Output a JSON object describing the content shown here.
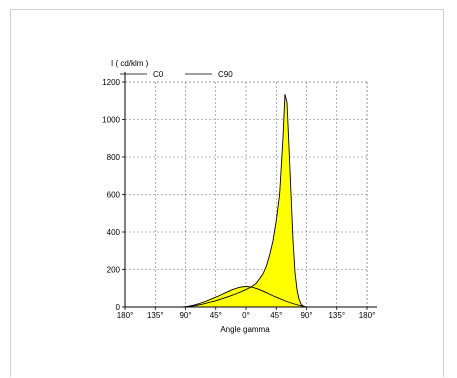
{
  "chart_data": {
    "type": "area",
    "ylabel": "I ( cd/klm )",
    "xlabel": "Angle gamma",
    "x_ticks": [
      "180°",
      "135°",
      "90°",
      "45°",
      "0°",
      "45°",
      "90°",
      "135°",
      "180°"
    ],
    "x_tick_values": [
      -180,
      -135,
      -90,
      -45,
      0,
      45,
      90,
      135,
      180
    ],
    "y_ticks": [
      "0",
      "200",
      "400",
      "600",
      "800",
      "1000",
      "1200"
    ],
    "xlim": [
      -180,
      180
    ],
    "ylim": [
      0,
      1200
    ],
    "grid": true,
    "legend_position": "top-left",
    "fill_color": "#ffff00",
    "line_color": "#000000",
    "series": [
      {
        "name": "C0",
        "x": [
          -95,
          -85,
          -75,
          -65,
          -55,
          -45,
          -35,
          -25,
          -15,
          -5,
          0,
          5,
          15,
          25,
          30,
          35,
          40,
          45,
          50,
          55,
          58,
          61,
          64,
          67,
          70,
          73,
          76,
          79,
          82,
          85,
          88
        ],
        "values": [
          0,
          3,
          8,
          15,
          24,
          33,
          45,
          57,
          70,
          85,
          93,
          102,
          125,
          175,
          215,
          275,
          350,
          460,
          600,
          900,
          1135,
          1090,
          850,
          600,
          350,
          180,
          90,
          40,
          15,
          5,
          0
        ]
      },
      {
        "name": "C90",
        "x": [
          -90,
          -80,
          -70,
          -60,
          -50,
          -40,
          -30,
          -20,
          -10,
          0,
          10,
          20,
          30,
          40,
          50,
          60,
          70,
          80,
          90
        ],
        "values": [
          0,
          8,
          18,
          30,
          45,
          60,
          77,
          93,
          105,
          110,
          105,
          93,
          77,
          60,
          45,
          30,
          18,
          8,
          0
        ]
      }
    ]
  }
}
